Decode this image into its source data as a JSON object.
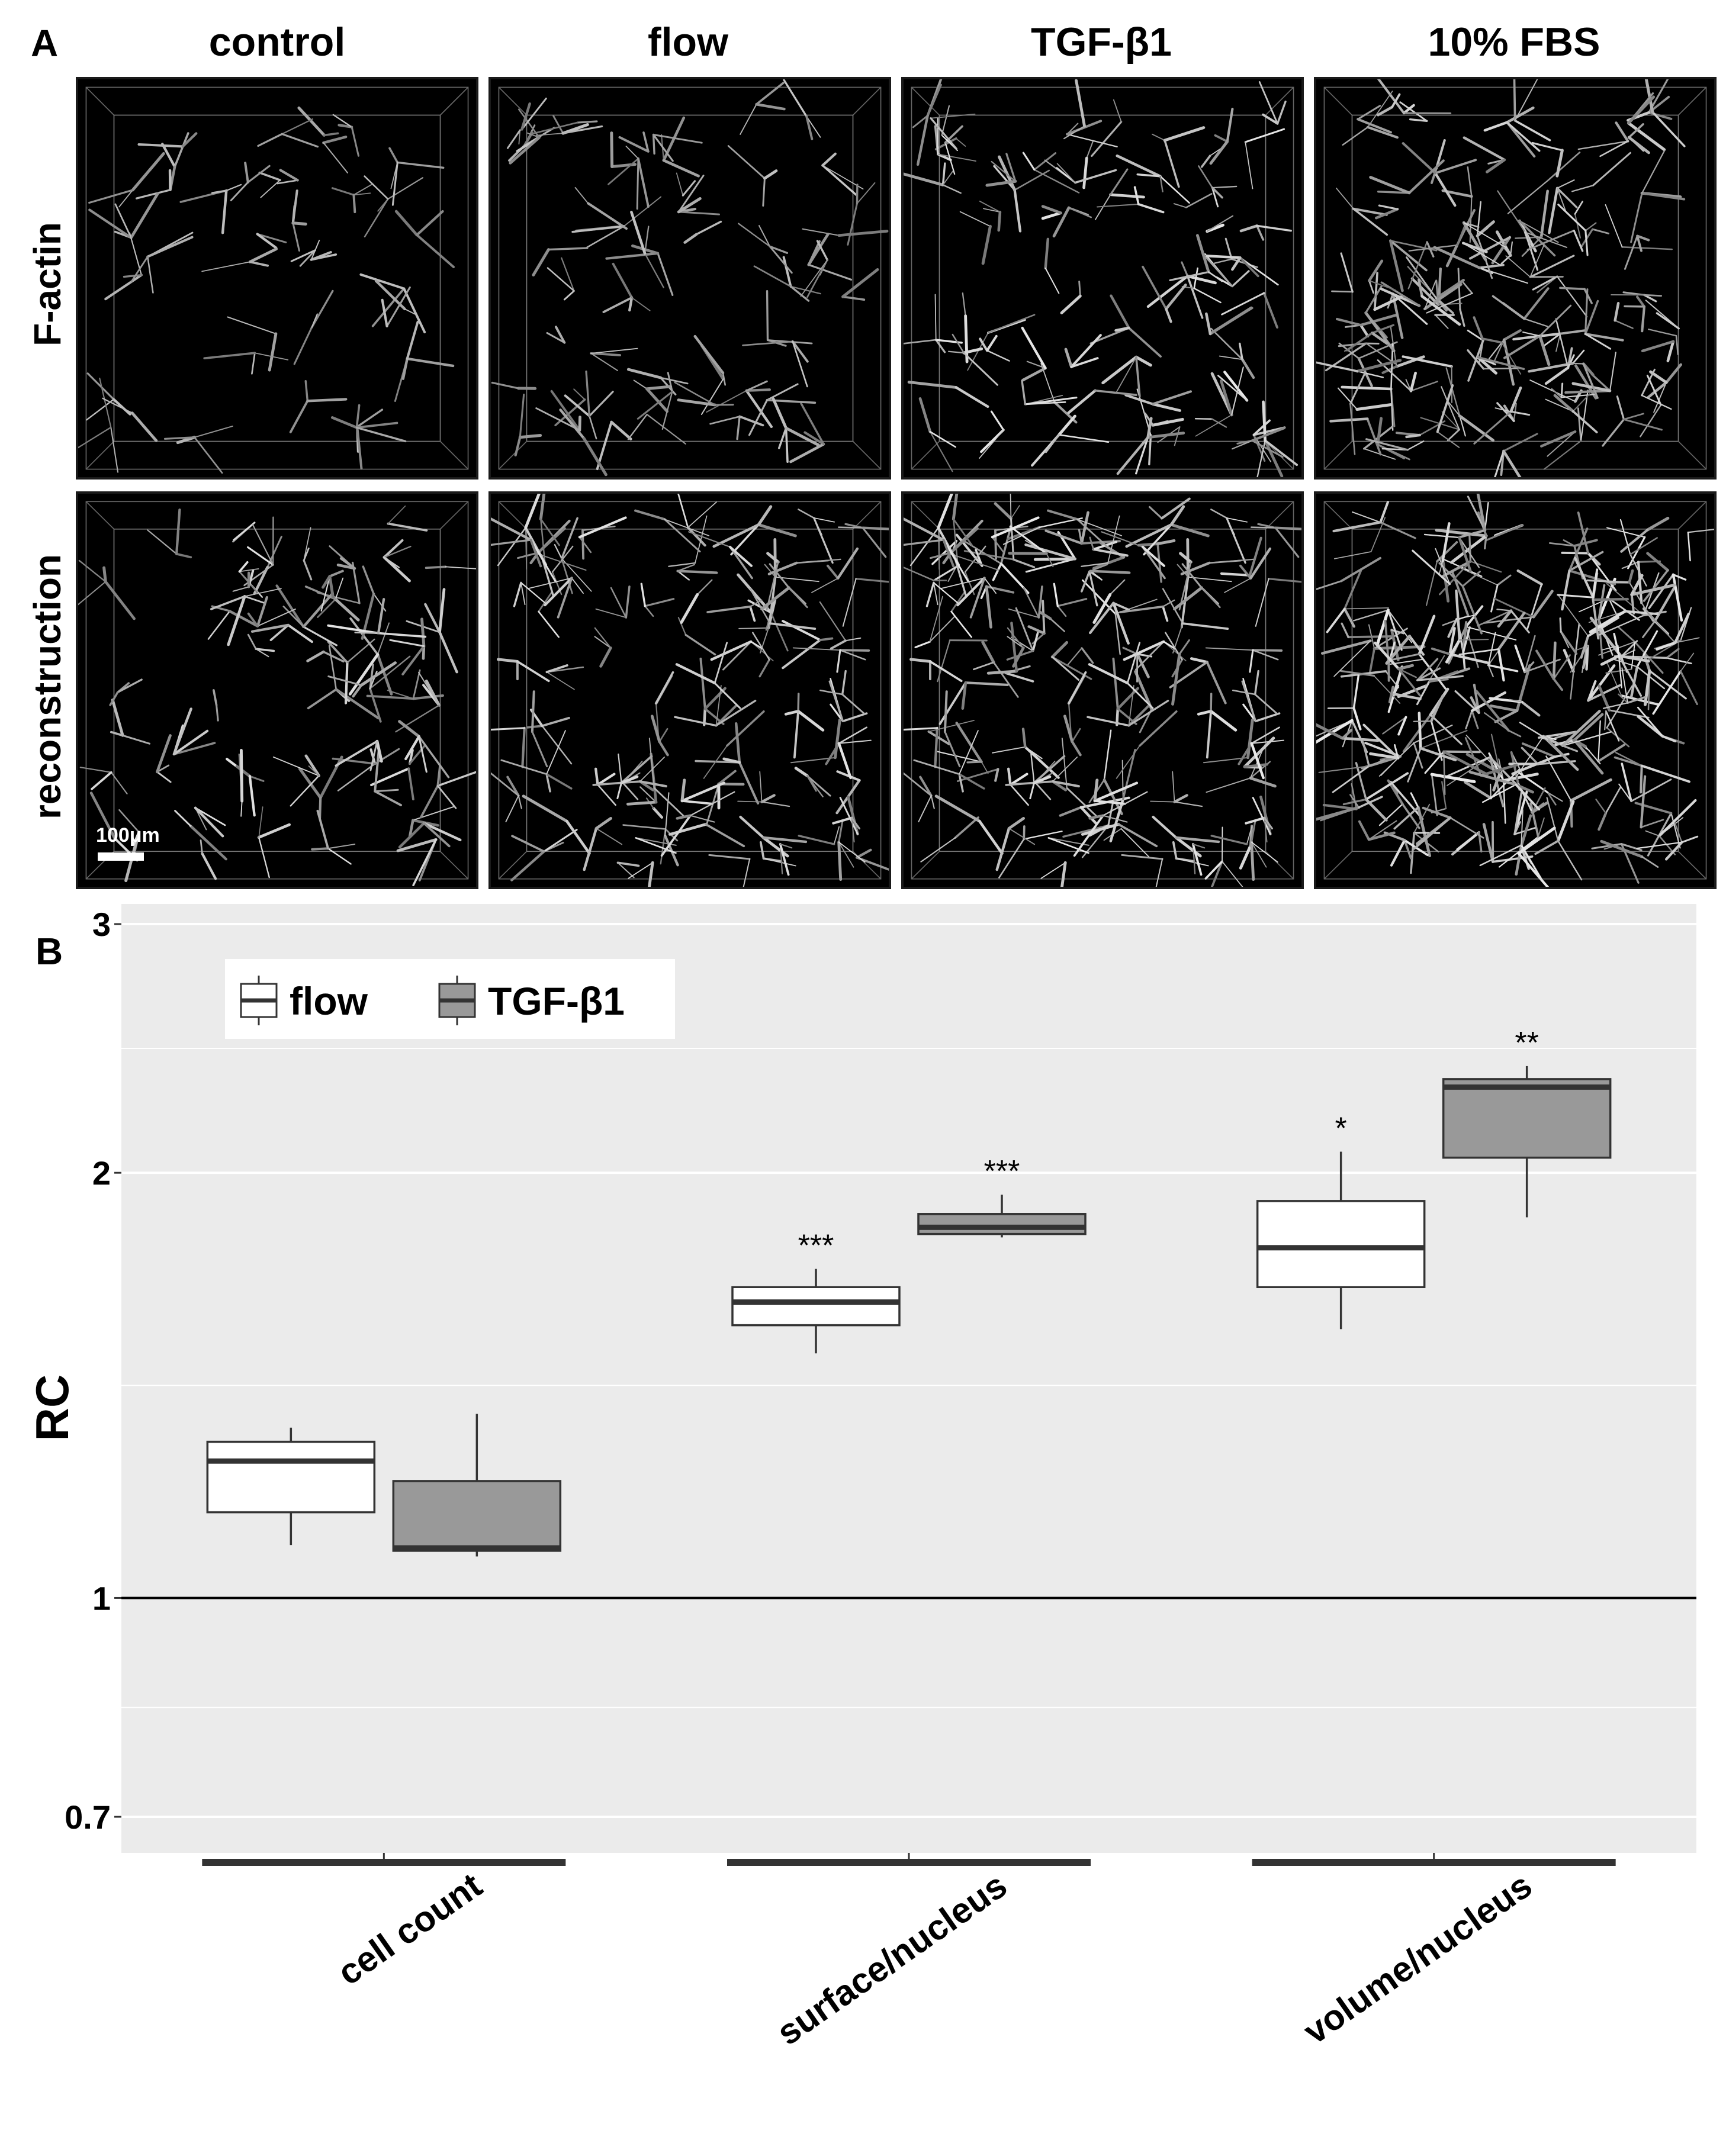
{
  "panel_a": {
    "letter": "A",
    "columns": [
      "control",
      "flow",
      "TGF-β1",
      "10% FBS"
    ],
    "rows": [
      "F-actin",
      "reconstruction"
    ],
    "scale_bar_label": "100μm"
  },
  "panel_b": {
    "letter": "B"
  },
  "chart_data": {
    "type": "box",
    "ylabel": "RC",
    "xlabel": "",
    "yscale": "log",
    "ylim": [
      0.66,
      3.1
    ],
    "yticks": [
      {
        "value": 0.7,
        "label": "0.7"
      },
      {
        "value": 1,
        "label": "1"
      },
      {
        "value": 2,
        "label": "2"
      },
      {
        "value": 3,
        "label": "3"
      }
    ],
    "reference_line": 1,
    "categories": [
      "cell count",
      "surface/nucleus",
      "volume/nucleus"
    ],
    "legend": {
      "position": "top-left"
    },
    "colors": {
      "flow": "#ffffff",
      "TGF-β1": "#999999",
      "panel_bg": "#ebebeb"
    },
    "series": [
      {
        "name": "flow",
        "boxes": [
          {
            "category": "cell count",
            "min": 1.09,
            "q1": 1.15,
            "median": 1.25,
            "q3": 1.29,
            "max": 1.32,
            "sig": ""
          },
          {
            "category": "surface/nucleus",
            "min": 1.49,
            "q1": 1.56,
            "median": 1.62,
            "q3": 1.66,
            "max": 1.71,
            "sig": "***"
          },
          {
            "category": "volume/nucleus",
            "min": 1.55,
            "q1": 1.66,
            "median": 1.77,
            "q3": 1.91,
            "max": 2.07,
            "sig": "*"
          }
        ]
      },
      {
        "name": "TGF-β1",
        "boxes": [
          {
            "category": "cell count",
            "min": 1.07,
            "q1": 1.08,
            "median": 1.085,
            "q3": 1.21,
            "max": 1.35,
            "sig": ""
          },
          {
            "category": "surface/nucleus",
            "min": 1.8,
            "q1": 1.81,
            "median": 1.83,
            "q3": 1.87,
            "max": 1.93,
            "sig": "***"
          },
          {
            "category": "volume/nucleus",
            "min": 1.86,
            "q1": 2.05,
            "median": 2.3,
            "q3": 2.33,
            "max": 2.38,
            "sig": "**"
          }
        ]
      }
    ]
  }
}
